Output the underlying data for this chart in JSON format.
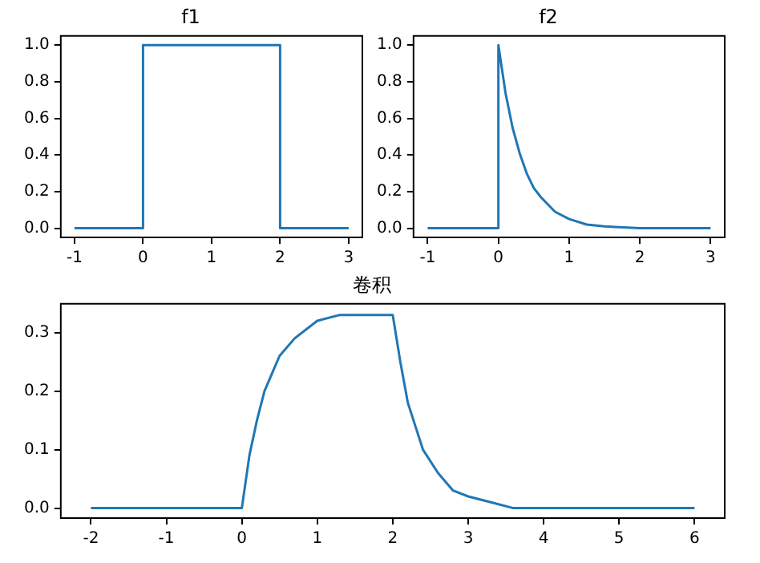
{
  "chart_data": [
    {
      "type": "line",
      "title": "f1",
      "xlim": [
        -1.2,
        3.2
      ],
      "ylim": [
        -0.05,
        1.05
      ],
      "xticks": [
        -1,
        0,
        1,
        2,
        3
      ],
      "yticks": [
        {
          "value": 0,
          "label": "0.0"
        },
        {
          "value": 0.2,
          "label": "0.2"
        },
        {
          "value": 0.4,
          "label": "0.4"
        },
        {
          "value": 0.6,
          "label": "0.6"
        },
        {
          "value": 0.8,
          "label": "0.8"
        },
        {
          "value": 1,
          "label": "1.0"
        }
      ],
      "grid": false,
      "legend": false,
      "series": [
        {
          "color": "#1f77b4",
          "x": [
            -1,
            0,
            0,
            2,
            2,
            3
          ],
          "values": [
            0,
            0,
            1,
            1,
            0,
            0
          ]
        }
      ]
    },
    {
      "type": "line",
      "title": "f2",
      "xlim": [
        -1.2,
        3.2
      ],
      "ylim": [
        -0.05,
        1.05
      ],
      "xticks": [
        -1,
        0,
        1,
        2,
        3
      ],
      "yticks": [
        {
          "value": 0,
          "label": "0.0"
        },
        {
          "value": 0.2,
          "label": "0.2"
        },
        {
          "value": 0.4,
          "label": "0.4"
        },
        {
          "value": 0.6,
          "label": "0.6"
        },
        {
          "value": 0.8,
          "label": "0.8"
        },
        {
          "value": 1,
          "label": "1.0"
        }
      ],
      "grid": false,
      "legend": false,
      "series": [
        {
          "color": "#1f77b4",
          "x": [
            -1,
            0,
            0,
            0.1,
            0.2,
            0.3,
            0.4,
            0.5,
            0.6,
            0.8,
            1,
            1.25,
            1.5,
            2,
            2.5,
            3
          ],
          "values": [
            0,
            0,
            1,
            0.74,
            0.55,
            0.41,
            0.3,
            0.22,
            0.17,
            0.09,
            0.05,
            0.02,
            0.01,
            0,
            0,
            0
          ]
        }
      ]
    },
    {
      "type": "line",
      "title": "卷积",
      "xlim": [
        -2.4,
        6.4
      ],
      "ylim": [
        -0.017,
        0.349
      ],
      "xticks": [
        -2,
        -1,
        0,
        1,
        2,
        3,
        4,
        5,
        6
      ],
      "yticks": [
        {
          "value": 0,
          "label": "0.0"
        },
        {
          "value": 0.1,
          "label": "0.1"
        },
        {
          "value": 0.2,
          "label": "0.2"
        },
        {
          "value": 0.3,
          "label": "0.3"
        }
      ],
      "grid": false,
      "legend": false,
      "series": [
        {
          "color": "#1f77b4",
          "x": [
            -2,
            0,
            0.1,
            0.2,
            0.3,
            0.4,
            0.5,
            0.7,
            1,
            1.3,
            1.6,
            2,
            2.1,
            2.2,
            2.3,
            2.4,
            2.6,
            2.8,
            3,
            3.3,
            3.6,
            4,
            5,
            6
          ],
          "values": [
            0,
            0,
            0.09,
            0.15,
            0.2,
            0.23,
            0.26,
            0.29,
            0.32,
            0.33,
            0.33,
            0.33,
            0.25,
            0.18,
            0.14,
            0.1,
            0.06,
            0.03,
            0.02,
            0.01,
            0,
            0,
            0,
            0
          ]
        }
      ]
    }
  ]
}
